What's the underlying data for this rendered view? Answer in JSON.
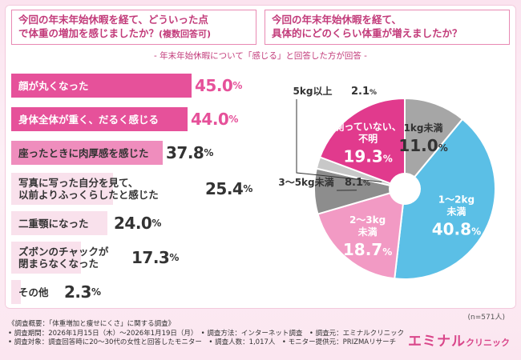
{
  "colors": {
    "accent": "#c23b7a",
    "bar_dark": "#e6519a",
    "bar_mid": "#ef8dbd",
    "bar_light": "#f6c3dc",
    "bar_pale": "#f9e1ec",
    "pie_grey": "#a6a6a6",
    "pie_pink_dark": "#e13a8d",
    "pie_blue": "#5bbfe6",
    "pie_pink_light": "#f29ac4",
    "pie_grey_dark": "#8d8d8d"
  },
  "left_question": {
    "line1": "今回の年末年始休暇を経て、どういった点",
    "line2": "で体重の増加を感じましたか？",
    "note": "(複数回答可)"
  },
  "right_question": {
    "line1": "今回の年末年始休暇を経て、",
    "line2": "具体的にどのくらい体重が増えましたか？"
  },
  "subtitle": "- 年末年始休暇について「感じる」と回答した方が回答 -",
  "chart_data": [
    {
      "type": "bar",
      "orientation": "horizontal",
      "unit": "%",
      "categories": [
        "顔が丸くなった",
        "身体全体が重く、だるく感じる",
        "座ったときに肉厚感を感じた",
        "写真に写った自分を見て、\n以前よりふっくらしたと感じた",
        "二重顎になった",
        "ズボンのチャックが\n閉まらなくなった",
        "その他"
      ],
      "values": [
        45.0,
        44.0,
        37.8,
        25.4,
        24.0,
        17.3,
        2.3
      ],
      "value_labels": [
        "45.0",
        "44.0",
        "37.8",
        "25.4",
        "24.0",
        "17.3",
        "2.3"
      ]
    },
    {
      "type": "pie",
      "unit": "%",
      "n_label": "(n=571人)",
      "slices": [
        {
          "label": "1kg未満",
          "value": 11.0,
          "value_label": "11.0",
          "color": "#a6a6a6"
        },
        {
          "label": "1〜2kg\n未満",
          "value": 40.8,
          "value_label": "40.8",
          "color": "#5bbfe6"
        },
        {
          "label": "2〜3kg\n未満",
          "value": 18.7,
          "value_label": "18.7",
          "color": "#f29ac4"
        },
        {
          "label": "3〜5kg未満",
          "value": 8.1,
          "value_label": "8.1",
          "color": "#8d8d8d"
        },
        {
          "label": "5kg以上",
          "value": 2.1,
          "value_label": "2.1",
          "color": "#c8c8c8"
        },
        {
          "label": "測っていない、\n不明",
          "value": 19.3,
          "value_label": "19.3",
          "color": "#e13a8d"
        }
      ]
    }
  ],
  "footer": {
    "line1": "《調査概要：「体重増加と痩せにくさ」に関する調査》",
    "line2": "• 調査期間：2026年1月15日（木）〜2026年1月19日（月）　• 調査方法：インターネット調査　• 調査元：エミナルクリニック",
    "line3": "• 調査対象：調査回答時に20〜30代の女性と回答したモニター　• 調査人数：1,017人　• モニター提供元：PRIZMAリサーチ"
  },
  "logo": {
    "main": "エミナル",
    "sub": "クリニック"
  }
}
